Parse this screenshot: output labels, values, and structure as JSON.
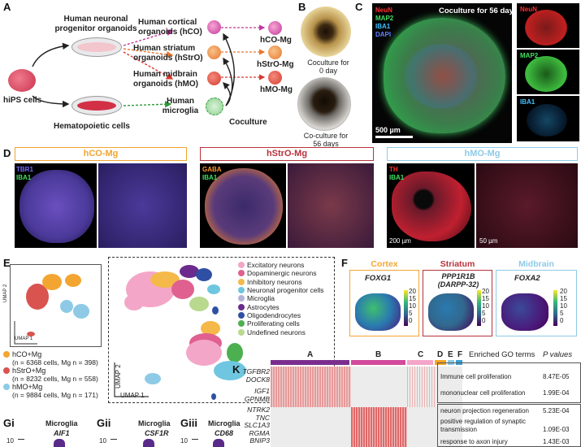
{
  "panels": {
    "A": "A",
    "B": "B",
    "C": "C",
    "D": "D",
    "E": "E",
    "F": "F",
    "K": "K"
  },
  "A": {
    "npo": "Human neuronal progenitor organoids",
    "ipsc": "hiPS cells",
    "hemato": "Hematopoietic cells",
    "hco": "Human cortical organoids (hCO)",
    "hstro": "Human striatum organoids (hStrO)",
    "hmo": "Human midbrain organoids (hMO)",
    "microglia": "Human microglia",
    "coculture": "Coculture",
    "hco_mg": "hCO-Mg",
    "hstro_mg": "hStrO-Mg",
    "hmo_mg": "hMO-Mg"
  },
  "B": {
    "day0": "Coculture for 0 day",
    "day56": "Co-culture for 56 days"
  },
  "C": {
    "title": "Coculture for 56 days",
    "ch1": "NeuN",
    "ch2": "MAP2",
    "ch3": "IBA1",
    "ch4": "DAPI",
    "scale": "500 µm",
    "side1": "NeuN",
    "side2": "MAP2",
    "side3": "IBA1"
  },
  "D": {
    "hco_title": "hCO-Mg",
    "hstro_title": "hStrO-Mg",
    "hmo_title": "hMO-Mg",
    "hco_ch1": "TBR1",
    "hco_ch2": "IBA1",
    "hstro_ch1": "GABA",
    "hstro_ch2": "IBA1",
    "hmo_ch1": "TH",
    "hmo_ch2": "IBA1",
    "scale1": "200 µm",
    "scale2": "50 µm"
  },
  "E": {
    "umap1": "UMAP 1",
    "umap2": "UMAP 2",
    "samples": [
      {
        "name": "hCO+Mg",
        "detail": "(n = 6368 cells, Mg n = 398)",
        "color": "#f2a531"
      },
      {
        "name": "hStrO+Mg",
        "detail": "(n = 8232 cells, Mg n = 558)",
        "color": "#d9534f"
      },
      {
        "name": "hMO+Mg",
        "detail": "(n = 9884 cells, Mg n = 171)",
        "color": "#8ecae6"
      }
    ],
    "celltypes": [
      {
        "name": "Excitatory neurons",
        "color": "#f4a6c8"
      },
      {
        "name": "Dopaminergic neurons",
        "color": "#e0608f"
      },
      {
        "name": "Inhibitory neurons",
        "color": "#f5b94a"
      },
      {
        "name": "Neuronal progenitor cells",
        "color": "#6fc6e0"
      },
      {
        "name": "Microglia",
        "color": "#b3b3d9"
      },
      {
        "name": "Astrocytes",
        "color": "#6a2b8c"
      },
      {
        "name": "Oligodendrocytes",
        "color": "#2f4fa5"
      },
      {
        "name": "Proliferating cells",
        "color": "#4caf50"
      },
      {
        "name": "Undefined neurons",
        "color": "#b9d98f"
      }
    ]
  },
  "F": {
    "cortex": "Cortex",
    "striatum": "Striatum",
    "midbrain": "Midbrain",
    "gene1": "FOXG1",
    "gene2": "PPP1R1B",
    "gene2b": "(DARPP-32)",
    "gene3": "FOXA2",
    "ticks": [
      "20",
      "15",
      "10",
      "5",
      "0"
    ]
  },
  "G": {
    "i_label": "Gi",
    "ii_label": "Gii",
    "iii_label": "Giii",
    "i_title": "Microglia",
    "ii_title": "Microglia",
    "iii_title": "Microglia",
    "i_gene": "AIF1",
    "ii_gene": "CSF1R",
    "iii_gene": "CD68",
    "tick": "10"
  },
  "K": {
    "groups": [
      "A",
      "B",
      "C",
      "D",
      "E",
      "F"
    ],
    "header_go": "Enriched GO terms",
    "header_p": "P values",
    "genes": [
      "TGFBR2",
      "DOCK8",
      "IGF1",
      "GPNMB",
      "NTRK2",
      "TNC",
      "SLC1A3",
      "RGMA",
      "BNIP3"
    ],
    "terms": [
      {
        "term": "Immune cell proliferation",
        "p": "8.47E-05"
      },
      {
        "term": "mononuclear cell proliferation",
        "p": "1.99E-04"
      },
      {
        "term": "neuron projection regeneration",
        "p": "5.23E-04"
      },
      {
        "term": "positive regulation of synaptic transmission",
        "p": "1.09E-03"
      },
      {
        "term": "response to axon injury",
        "p": "1.43E-03"
      }
    ]
  },
  "colors": {
    "hco": "#f2a531",
    "hstro": "#b8323c",
    "hmo": "#8ecae6",
    "kA": "#7b2d8e",
    "kB": "#d24a9c",
    "kC": "#f4a6c8",
    "kD": "#f5a623",
    "kE": "#8ecae6",
    "kF": "#3aa0d8"
  }
}
